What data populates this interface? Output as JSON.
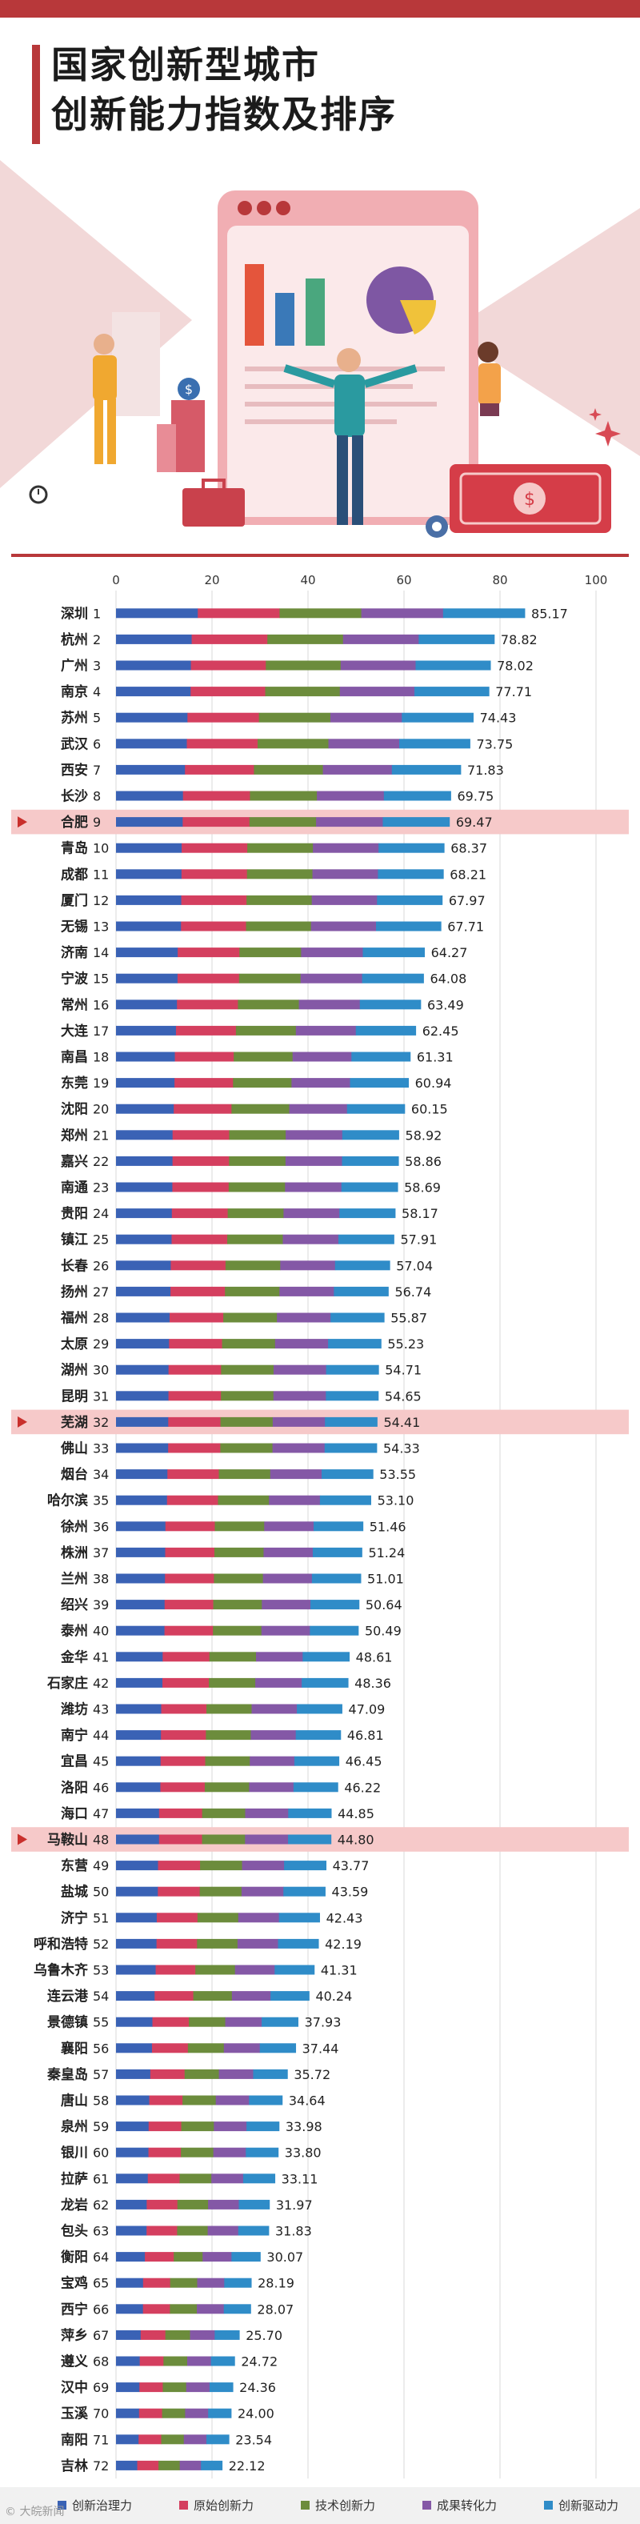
{
  "header": {
    "title_line1": "国家创新型城市",
    "title_line2": "创新能力指数及排序"
  },
  "hero": {
    "icons": [
      "bar-chart-icon",
      "pie-chart-icon",
      "dollar-coin-icon",
      "banknote-icon",
      "briefcase-icon",
      "gear-icon",
      "sparkle-icon",
      "stopwatch-icon"
    ]
  },
  "colors": {
    "brand": "#b8383a",
    "highlight_row": "#f6c9c9",
    "highlight_marker": "#c9302c",
    "axis_text": "#333333"
  },
  "chart_data": {
    "type": "bar",
    "orientation": "horizontal",
    "stacked": true,
    "xlim": [
      0,
      100
    ],
    "xticks": [
      0,
      20,
      40,
      60,
      80,
      100
    ],
    "grid": true,
    "legend_position": "bottom",
    "series": [
      {
        "name": "创新治理力",
        "color": "#3a62b5"
      },
      {
        "name": "原始创新力",
        "color": "#d43f5f"
      },
      {
        "name": "技术创新力",
        "color": "#6c8c3c"
      },
      {
        "name": "成果转化力",
        "color": "#8458a6"
      },
      {
        "name": "创新驱动力",
        "color": "#2f8cc8"
      }
    ],
    "highlight_ranks": [
      "9",
      "32",
      "48"
    ],
    "categories": [
      {
        "city": "深圳",
        "rank": "1",
        "total": 85.17
      },
      {
        "city": "杭州",
        "rank": "2",
        "total": 78.82
      },
      {
        "city": "广州",
        "rank": "3",
        "total": 78.02
      },
      {
        "city": "南京",
        "rank": "4",
        "total": 77.71
      },
      {
        "city": "苏州",
        "rank": "5",
        "total": 74.43
      },
      {
        "city": "武汉",
        "rank": "6",
        "total": 73.75
      },
      {
        "city": "西安",
        "rank": "7",
        "total": 71.83
      },
      {
        "city": "长沙",
        "rank": "8",
        "total": 69.75
      },
      {
        "city": "合肥",
        "rank": "9",
        "total": 69.47
      },
      {
        "city": "青岛",
        "rank": "10",
        "total": 68.37
      },
      {
        "city": "成都",
        "rank": "11",
        "total": 68.21
      },
      {
        "city": "厦门",
        "rank": "12",
        "total": 67.97
      },
      {
        "city": "无锡",
        "rank": "13",
        "total": 67.71
      },
      {
        "city": "济南",
        "rank": "14",
        "total": 64.27
      },
      {
        "city": "宁波",
        "rank": "15",
        "total": 64.08
      },
      {
        "city": "常州",
        "rank": "16",
        "total": 63.49
      },
      {
        "city": "大连",
        "rank": "17",
        "total": 62.45
      },
      {
        "city": "南昌",
        "rank": "18",
        "total": 61.31
      },
      {
        "city": "东莞",
        "rank": "19",
        "total": 60.94
      },
      {
        "city": "沈阳",
        "rank": "20",
        "total": 60.15
      },
      {
        "city": "郑州",
        "rank": "21",
        "total": 58.92
      },
      {
        "city": "嘉兴",
        "rank": "22",
        "total": 58.86
      },
      {
        "city": "南通",
        "rank": "23",
        "total": 58.69
      },
      {
        "city": "贵阳",
        "rank": "24",
        "total": 58.17
      },
      {
        "city": "镇江",
        "rank": "25",
        "total": 57.91
      },
      {
        "city": "长春",
        "rank": "26",
        "total": 57.04
      },
      {
        "city": "扬州",
        "rank": "27",
        "total": 56.74
      },
      {
        "city": "福州",
        "rank": "28",
        "total": 55.87
      },
      {
        "city": "太原",
        "rank": "29",
        "total": 55.23
      },
      {
        "city": "湖州",
        "rank": "30",
        "total": 54.71
      },
      {
        "city": "昆明",
        "rank": "31",
        "total": 54.65
      },
      {
        "city": "芜湖",
        "rank": "32",
        "total": 54.41
      },
      {
        "city": "佛山",
        "rank": "33",
        "total": 54.33
      },
      {
        "city": "烟台",
        "rank": "34",
        "total": 53.55
      },
      {
        "city": "哈尔滨",
        "rank": "35",
        "total": 53.1
      },
      {
        "city": "徐州",
        "rank": "36",
        "total": 51.46
      },
      {
        "city": "株洲",
        "rank": "37",
        "total": 51.24
      },
      {
        "city": "兰州",
        "rank": "38",
        "total": 51.01
      },
      {
        "city": "绍兴",
        "rank": "39",
        "total": 50.64
      },
      {
        "city": "泰州",
        "rank": "40",
        "total": 50.49
      },
      {
        "city": "金华",
        "rank": "41",
        "total": 48.61
      },
      {
        "city": "石家庄",
        "rank": "42",
        "total": 48.36
      },
      {
        "city": "潍坊",
        "rank": "43",
        "total": 47.09
      },
      {
        "city": "南宁",
        "rank": "44",
        "total": 46.81
      },
      {
        "city": "宜昌",
        "rank": "45",
        "total": 46.45
      },
      {
        "city": "洛阳",
        "rank": "46",
        "total": 46.22
      },
      {
        "city": "海口",
        "rank": "47",
        "total": 44.85
      },
      {
        "city": "马鞍山",
        "rank": "48",
        "total": 44.8
      },
      {
        "city": "东营",
        "rank": "49",
        "total": 43.77
      },
      {
        "city": "盐城",
        "rank": "50",
        "total": 43.59
      },
      {
        "city": "济宁",
        "rank": "51",
        "total": 42.43
      },
      {
        "city": "呼和浩特",
        "rank": "52",
        "total": 42.19
      },
      {
        "city": "乌鲁木齐",
        "rank": "53",
        "total": 41.31
      },
      {
        "city": "连云港",
        "rank": "54",
        "total": 40.24
      },
      {
        "city": "景德镇",
        "rank": "55",
        "total": 37.93
      },
      {
        "city": "襄阳",
        "rank": "56",
        "total": 37.44
      },
      {
        "city": "秦皇岛",
        "rank": "57",
        "total": 35.72
      },
      {
        "city": "唐山",
        "rank": "58",
        "total": 34.64
      },
      {
        "city": "泉州",
        "rank": "59",
        "total": 33.98
      },
      {
        "city": "银川",
        "rank": "60",
        "total": 33.8
      },
      {
        "city": "拉萨",
        "rank": "61",
        "total": 33.11
      },
      {
        "city": "龙岩",
        "rank": "62",
        "total": 31.97
      },
      {
        "city": "包头",
        "rank": "63",
        "total": 31.83
      },
      {
        "city": "衡阳",
        "rank": "64",
        "total": 30.07
      },
      {
        "city": "宝鸡",
        "rank": "65",
        "total": 28.19
      },
      {
        "city": "西宁",
        "rank": "66",
        "total": 28.07
      },
      {
        "city": "萍乡",
        "rank": "67",
        "total": 25.7
      },
      {
        "city": "遵义",
        "rank": "68",
        "total": 24.72
      },
      {
        "city": "汉中",
        "rank": "69",
        "total": 24.36
      },
      {
        "city": "玉溪",
        "rank": "70",
        "total": 24.0
      },
      {
        "city": "南阳",
        "rank": "71",
        "total": 23.54
      },
      {
        "city": "吉林",
        "rank": "72",
        "total": 22.12
      }
    ]
  },
  "footer": {
    "watermark": "© 大皖新闻"
  }
}
